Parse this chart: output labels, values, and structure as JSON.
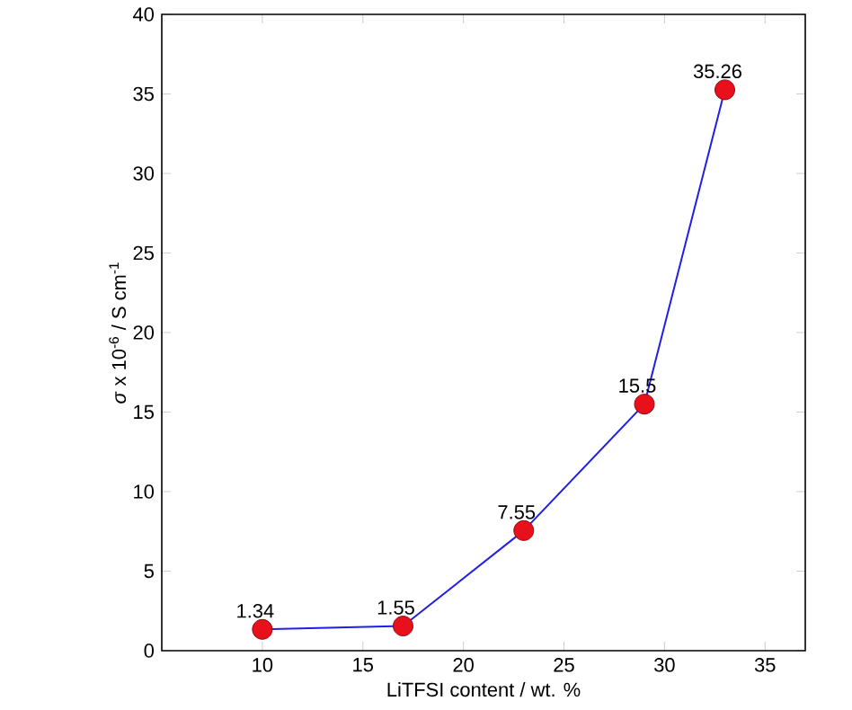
{
  "chart_data": {
    "type": "line",
    "xlabel": "LiTFSI content / wt. %",
    "ylabel": "*σ* x 10$^{-6}$ / S cm$^{-1}$",
    "x": [
      10,
      17,
      23,
      29,
      33
    ],
    "series": [
      {
        "color": "#1f1fe6",
        "colors": [
          "#e8101a",
          "#e8101a",
          "#e8101a",
          "#e8101a",
          "#e8101a"
        ],
        "values": [
          1.34,
          1.55,
          7.55,
          15.5,
          35.26
        ]
      }
    ],
    "value_labels": [
      "1.34",
      "1.55",
      "7.55",
      "15.5",
      "35.26"
    ],
    "xlim": [
      5,
      37
    ],
    "ylim": [
      0,
      40
    ],
    "xticks": [
      10,
      15,
      20,
      25,
      30,
      35
    ],
    "yticks": [
      0,
      5,
      10,
      15,
      20,
      25,
      30,
      35,
      40
    ],
    "marker": "circle",
    "line_style": "solid",
    "grid": false
  }
}
